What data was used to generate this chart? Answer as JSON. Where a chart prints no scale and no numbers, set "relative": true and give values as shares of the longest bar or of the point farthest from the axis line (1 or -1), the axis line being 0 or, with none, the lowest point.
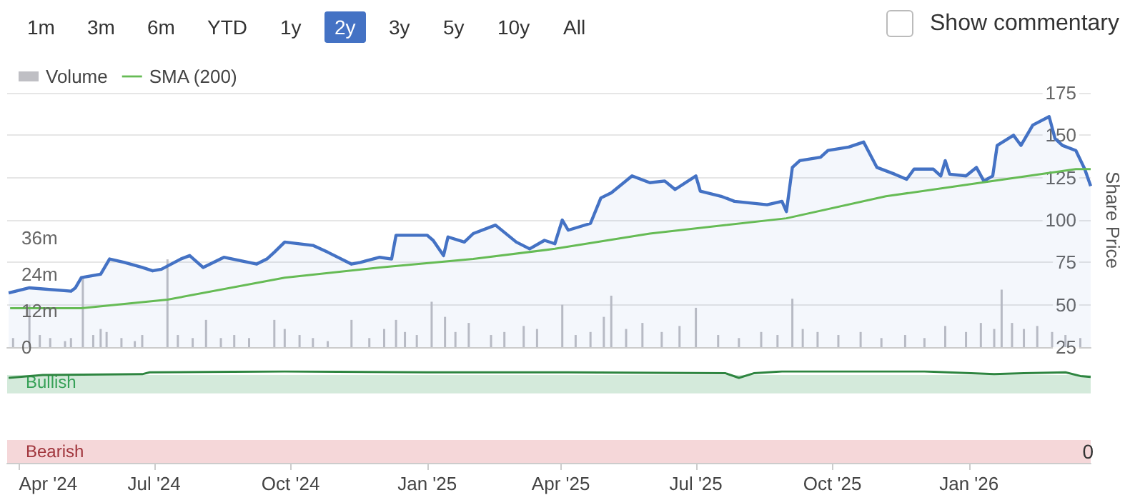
{
  "chart_data": [
    {
      "type": "line",
      "annotations": [
        "1m",
        "3m",
        "6m",
        "YTD",
        "1y",
        "2y",
        "3y",
        "5y",
        "10y",
        "All",
        "Show commentary"
      ],
      "y2label": "Share Price",
      "xlim": [
        "2024-03-24",
        "2026-03-24"
      ],
      "ylim": [
        0,
        84
      ],
      "yticks": [
        {
          "value": 0,
          "label": "0"
        },
        {
          "value": 12,
          "label": "12m"
        },
        {
          "value": 24,
          "label": "24m"
        },
        {
          "value": 36,
          "label": "36m"
        }
      ],
      "y2lim": [
        25,
        175
      ],
      "y2ticks": [
        25,
        50,
        75,
        100,
        125,
        150,
        175
      ],
      "grid": "y",
      "legend": "top left",
      "marker": "none",
      "tick_labels": "y",
      "series": [
        {
          "type": "bar",
          "name": "Volume",
          "color": "#bfbfc4",
          "x": [
            "2024-03-28",
            "2024-04-08",
            "2024-04-15",
            "2024-04-22",
            "2024-05-02",
            "2024-05-06",
            "2024-05-14",
            "2024-05-21",
            "2024-05-26",
            "2024-05-30",
            "2024-06-09",
            "2024-06-18",
            "2024-06-23",
            "2024-07-10",
            "2024-07-17",
            "2024-07-27",
            "2024-08-05",
            "2024-08-15",
            "2024-08-24",
            "2024-09-03",
            "2024-09-20",
            "2024-09-27",
            "2024-10-07",
            "2024-10-16",
            "2024-10-26",
            "2024-11-11",
            "2024-11-23",
            "2024-12-03",
            "2024-12-11",
            "2024-12-17",
            "2024-12-25",
            "2025-01-04",
            "2025-01-13",
            "2025-01-20",
            "2025-01-29",
            "2025-02-13",
            "2025-02-22",
            "2025-03-07",
            "2025-03-16",
            "2025-04-02",
            "2025-04-11",
            "2025-04-21",
            "2025-04-30",
            "2025-05-05",
            "2025-05-15",
            "2025-05-26",
            "2025-06-08",
            "2025-06-20",
            "2025-07-01",
            "2025-07-16",
            "2025-07-30",
            "2025-08-14",
            "2025-08-25",
            "2025-09-04",
            "2025-09-11",
            "2025-09-21",
            "2025-10-05",
            "2025-10-20",
            "2025-11-03",
            "2025-11-19",
            "2025-12-02",
            "2025-12-16",
            "2025-12-30",
            "2026-01-09",
            "2026-01-18",
            "2026-01-23",
            "2026-01-30",
            "2026-02-07",
            "2026-02-16",
            "2026-02-26",
            "2026-03-07",
            "2026-03-17"
          ],
          "values": [
            3,
            14,
            4,
            3,
            2,
            3,
            23,
            4,
            6,
            5,
            3,
            2,
            4,
            29,
            4,
            3,
            9,
            3,
            4,
            3,
            9,
            6,
            4,
            3,
            2,
            9,
            3,
            6,
            9,
            5,
            4,
            15,
            10,
            5,
            8,
            4,
            5,
            7,
            6,
            14,
            4,
            5,
            10,
            17,
            6,
            8,
            5,
            7,
            13,
            4,
            3,
            5,
            4,
            16,
            6,
            5,
            4,
            5,
            3,
            4,
            3,
            7,
            5,
            8,
            6,
            19,
            8,
            6,
            7,
            5,
            4,
            3
          ]
        },
        {
          "type": "area",
          "axis": "y2",
          "color": "#4472c4",
          "x": [
            "2024-03-25",
            "2024-04-08",
            "2024-05-06",
            "2024-05-09",
            "2024-05-13",
            "2024-05-26",
            "2024-06-01",
            "2024-06-11",
            "2024-06-23",
            "2024-06-30",
            "2024-07-06",
            "2024-07-19",
            "2024-07-25",
            "2024-08-03",
            "2024-08-17",
            "2024-09-08",
            "2024-09-15",
            "2024-09-20",
            "2024-09-27",
            "2024-10-16",
            "2024-10-26",
            "2024-11-11",
            "2024-11-17",
            "2024-11-30",
            "2024-12-08",
            "2024-12-11",
            "2025-01-01",
            "2025-01-05",
            "2025-01-12",
            "2025-01-15",
            "2025-01-26",
            "2025-02-01",
            "2025-02-16",
            "2025-03-02",
            "2025-03-11",
            "2025-03-21",
            "2025-03-28",
            "2025-04-02",
            "2025-04-06",
            "2025-04-21",
            "2025-04-28",
            "2025-05-05",
            "2025-05-19",
            "2025-05-31",
            "2025-06-10",
            "2025-06-17",
            "2025-07-01",
            "2025-07-04",
            "2025-07-18",
            "2025-07-27",
            "2025-08-18",
            "2025-08-28",
            "2025-08-31",
            "2025-09-04",
            "2025-09-09",
            "2025-09-23",
            "2025-09-28",
            "2025-10-12",
            "2025-10-22",
            "2025-10-31",
            "2025-11-12",
            "2025-11-20",
            "2025-11-25",
            "2025-12-08",
            "2025-12-13",
            "2025-12-16",
            "2025-12-19",
            "2025-12-30",
            "2026-01-06",
            "2026-01-11",
            "2026-01-17",
            "2026-01-20",
            "2026-01-31",
            "2026-02-05",
            "2026-02-13",
            "2026-02-24",
            "2026-02-28",
            "2026-03-05",
            "2026-03-14",
            "2026-03-20",
            "2026-03-24"
          ],
          "values": [
            57,
            60,
            58,
            60,
            66,
            68,
            77,
            75,
            72,
            70,
            71,
            77,
            79,
            72,
            78,
            74,
            77,
            81,
            87,
            85,
            81,
            74,
            75,
            78,
            77,
            91,
            91,
            88,
            79,
            90,
            87,
            92,
            97,
            87,
            83,
            88,
            86,
            100,
            94,
            98,
            113,
            116,
            126,
            122,
            123,
            118,
            126,
            117,
            114,
            111,
            109,
            111,
            105,
            131,
            135,
            137,
            141,
            143,
            146,
            131,
            127,
            124,
            130,
            130,
            126,
            135,
            127,
            126,
            131,
            123,
            126,
            144,
            150,
            144,
            156,
            161,
            148,
            144,
            141,
            130,
            120
          ]
        },
        {
          "axis": "y2",
          "name": "SMA (200)",
          "color": "#66bb55",
          "x": [
            "2024-03-26",
            "2024-05-13",
            "2024-07-10",
            "2024-09-27",
            "2024-11-30",
            "2025-02-01",
            "2025-03-28",
            "2025-05-31",
            "2025-08-31",
            "2025-11-06",
            "2026-01-09",
            "2026-03-14",
            "2026-03-24"
          ],
          "values": [
            48,
            48,
            53,
            66,
            72,
            77,
            83,
            92,
            101,
            114,
            122,
            130,
            130
          ]
        }
      ]
    },
    {
      "type": "line",
      "xlim": [
        "2024-03-24",
        "2026-03-24"
      ],
      "xticks": [
        {
          "value": "2024-04-01",
          "label": "Apr '24"
        },
        {
          "value": "2024-07-01",
          "label": "Jul '24"
        },
        {
          "value": "2024-10-01",
          "label": "Oct '24"
        },
        {
          "value": "2025-01-01",
          "label": "Jan '25"
        },
        {
          "value": "2025-04-01",
          "label": "Apr '25"
        },
        {
          "value": "2025-07-01",
          "label": "Jul '25"
        },
        {
          "value": "2025-10-01",
          "label": "Oct '25"
        },
        {
          "value": "2026-01-01",
          "label": "Jan '26"
        }
      ],
      "relative": true,
      "annotations": [
        "0"
      ],
      "marker": "none",
      "bands": [
        {
          "axis": "y",
          "from": 0.76,
          "to": 0.96,
          "label": "Bullish",
          "color": "#d4eadb"
        },
        {
          "axis": "y",
          "from": 0,
          "to": 0.25,
          "label": "Bearish",
          "color": "#f5d7d9"
        }
      ],
      "series": [
        {
          "color": "#2e8540",
          "x": [
            "2024-03-25",
            "2024-04-17",
            "2024-06-23",
            "2024-06-28",
            "2024-09-27",
            "2025-01-01",
            "2025-04-06",
            "2025-07-21",
            "2025-07-30",
            "2025-08-09",
            "2025-08-28",
            "2025-12-02",
            "2026-01-18",
            "2026-02-07",
            "2026-03-07",
            "2026-03-17",
            "2026-03-24"
          ],
          "values": [
            0.93,
            0.96,
            0.97,
            0.99,
            1,
            0.99,
            0.99,
            0.98,
            0.93,
            0.98,
            1,
            1,
            0.97,
            0.98,
            0.99,
            0.95,
            0.94
          ]
        }
      ]
    }
  ]
}
